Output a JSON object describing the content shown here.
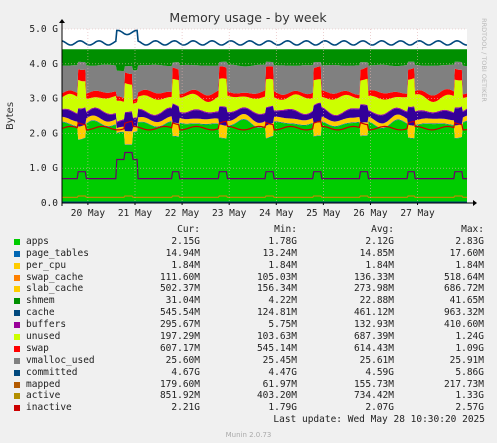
{
  "chart_data": {
    "type": "area",
    "title": "Memory usage - by week",
    "ylabel": "Bytes",
    "watermark": "RRDTOOL / TOBI OETIKER",
    "ylim": [
      0,
      5000000000
    ],
    "yticks": [
      {
        "v": 0,
        "label": "0.0"
      },
      {
        "v": 1000000000,
        "label": "1.0 G"
      },
      {
        "v": 2000000000,
        "label": "2.0 G"
      },
      {
        "v": 3000000000,
        "label": "3.0 G"
      },
      {
        "v": 4000000000,
        "label": "4.0 G"
      },
      {
        "v": 5000000000,
        "label": "5.0 G"
      }
    ],
    "xticks": [
      "20 May",
      "21 May",
      "22 May",
      "23 May",
      "24 May",
      "25 May",
      "26 May",
      "27 May"
    ],
    "grid": true,
    "series": [
      {
        "name": "apps",
        "color": "#00cc00",
        "style": "area",
        "cur": "2.15G",
        "min": "1.78G",
        "avg": "2.12G",
        "max": "2.83G"
      },
      {
        "name": "page_tables",
        "color": "#0066b3",
        "style": "stack",
        "cur": "14.94M",
        "min": "13.24M",
        "avg": "14.85M",
        "max": "17.60M"
      },
      {
        "name": "per_cpu",
        "color": "#ff8000",
        "style": "stack",
        "cur": "1.84M",
        "min": "1.84M",
        "avg": "1.84M",
        "max": "1.84M"
      },
      {
        "name": "swap_cache",
        "color": "#ffcc00",
        "style": "stack",
        "cur": "111.60M",
        "min": "105.03M",
        "avg": "136.33M",
        "max": "518.64M"
      },
      {
        "name": "slab_cache",
        "color": "#330099",
        "style": "stack",
        "cur": "502.37M",
        "min": "156.34M",
        "avg": "273.98M",
        "max": "686.72M"
      },
      {
        "name": "shmem",
        "color": "#990099",
        "style": "stack",
        "cur": "31.04M",
        "min": "4.22M",
        "avg": "22.88M",
        "max": "41.65M"
      },
      {
        "name": "cache",
        "color": "#ccff00",
        "style": "stack",
        "cur": "545.54M",
        "min": "124.81M",
        "avg": "461.12M",
        "max": "963.32M"
      },
      {
        "name": "buffers",
        "color": "#ff0000",
        "style": "stack",
        "cur": "295.67M",
        "min": "5.75M",
        "avg": "132.93M",
        "max": "410.60M"
      },
      {
        "name": "unused",
        "color": "#808080",
        "style": "stack",
        "cur": "197.29M",
        "min": "103.63M",
        "avg": "687.39M",
        "max": "1.24G"
      },
      {
        "name": "swap",
        "color": "#008f00",
        "style": "stack",
        "cur": "607.17M",
        "min": "545.14M",
        "avg": "614.43M",
        "max": "1.09G"
      },
      {
        "name": "vmalloc_used",
        "color": "#00487d",
        "style": "line",
        "cur": "25.60M",
        "min": "25.45M",
        "avg": "25.61M",
        "max": "25.91M"
      },
      {
        "name": "committed",
        "color": "#b35a00",
        "style": "line",
        "cur": "4.67G",
        "min": "4.47G",
        "avg": "4.59G",
        "max": "5.86G"
      },
      {
        "name": "mapped",
        "color": "#b38f00",
        "style": "line",
        "cur": "179.60M",
        "min": "61.97M",
        "avg": "155.73M",
        "max": "217.73M"
      },
      {
        "name": "active",
        "color": "#6b006b",
        "style": "line",
        "cur": "851.92M",
        "min": "403.20M",
        "avg": "734.42M",
        "max": "1.33G"
      },
      {
        "name": "inactive",
        "color": "#8fb300",
        "style": "line",
        "cur": "2.21G",
        "min": "1.79G",
        "avg": "2.07G",
        "max": "2.57G"
      }
    ]
  },
  "legend": {
    "headers": {
      "cur": "Cur:",
      "min": "Min:",
      "avg": "Avg:",
      "max": "Max:"
    },
    "swatch_colors": [
      "#00cc00",
      "#0066b3",
      "#ffcc00",
      "#ff8000",
      "#ffcc00",
      "#008f00",
      "#00487d",
      "#990099",
      "#ccff00",
      "#ff0000",
      "#808080",
      "#00487d",
      "#b35a00",
      "#b38f00",
      "#cc0000"
    ],
    "names": [
      "apps",
      "page_tables",
      "per_cpu",
      "swap_cache",
      "slab_cache",
      "shmem",
      "cache",
      "buffers",
      "unused",
      "swap",
      "vmalloc_used",
      "committed",
      "mapped",
      "active",
      "inactive"
    ]
  },
  "footer": {
    "last_update": "Last update: Wed May 28 10:30:20 2025",
    "version": "Munin 2.0.73"
  }
}
